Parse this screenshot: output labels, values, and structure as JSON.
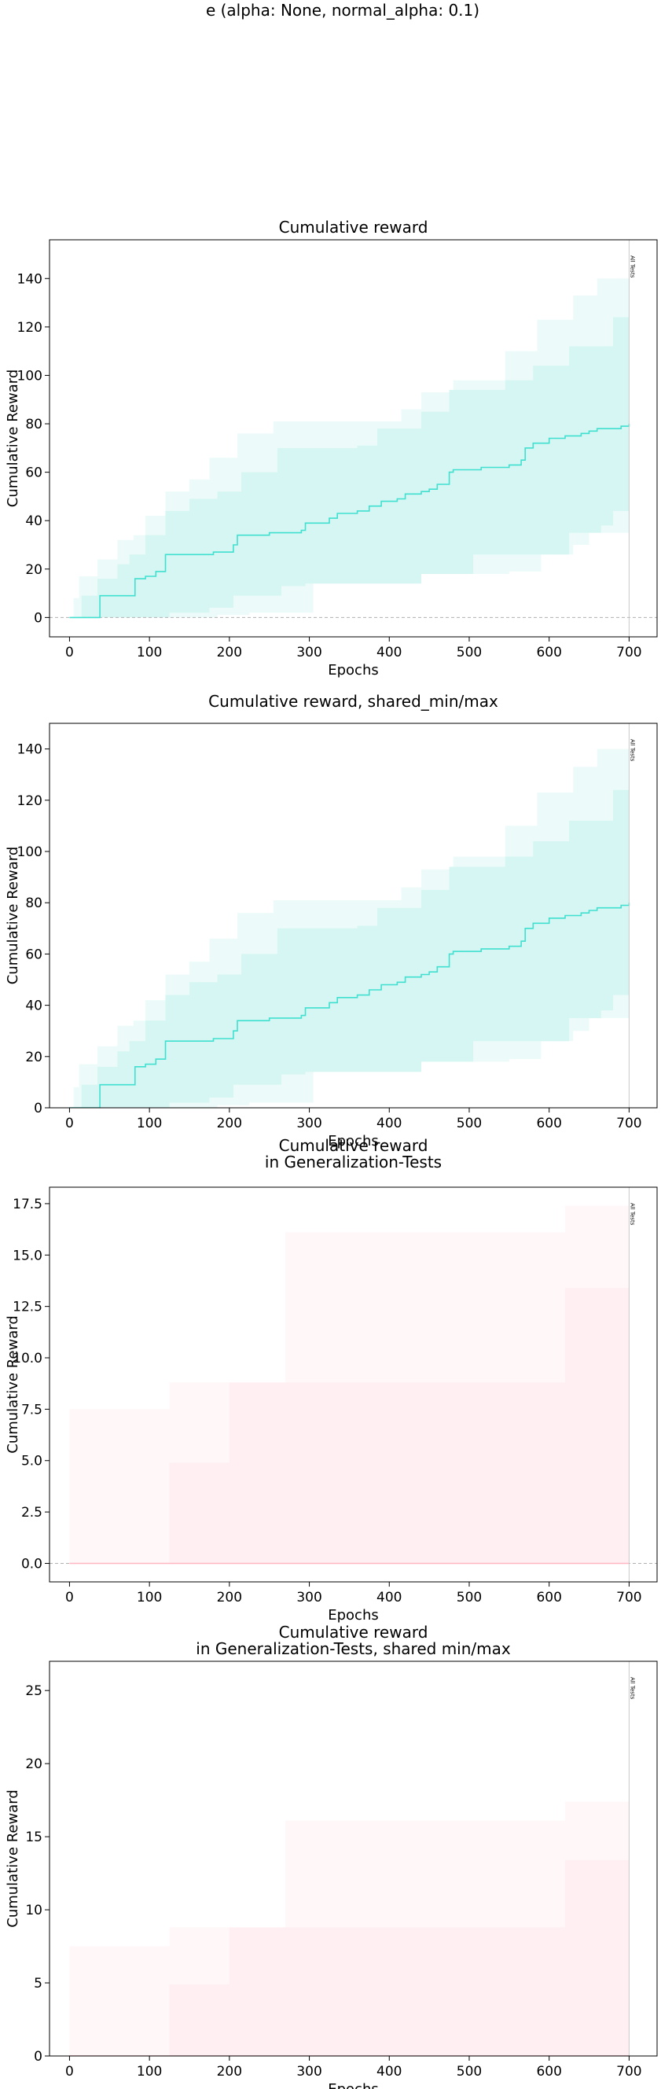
{
  "figure": {
    "suptitle": "e (alpha: None, normal_alpha: 0.1)",
    "vline_label": "All Tests"
  },
  "colors": {
    "train_outer": "#ecfbf9",
    "train_inner": "#d5f6f2",
    "train_line": "#40e0d0",
    "test_outer": "#fff7f8",
    "test_inner": "#ffeff2",
    "test_line": "#ffb6c1",
    "vline": "#c8c8c8",
    "zero_line": "#b0b0b0"
  },
  "chart_data": [
    {
      "type": "line",
      "title": "Cumulative reward",
      "xlabel": "Epochs",
      "ylabel": "Cumulative Reward",
      "xlim": [
        -25,
        735
      ],
      "ylim": [
        -8,
        156
      ],
      "xticks": [
        0,
        100,
        200,
        300,
        400,
        500,
        600,
        700
      ],
      "yticks": [
        0,
        20,
        40,
        60,
        80,
        100,
        120,
        140
      ],
      "zero_line": true,
      "grid": false,
      "palette": "train",
      "vline_x": 700,
      "bands": {
        "outer_upper": [
          [
            0,
            0
          ],
          [
            5,
            8
          ],
          [
            12,
            17
          ],
          [
            35,
            24
          ],
          [
            60,
            32
          ],
          [
            80,
            34
          ],
          [
            95,
            42
          ],
          [
            120,
            52
          ],
          [
            150,
            57
          ],
          [
            175,
            66
          ],
          [
            210,
            76
          ],
          [
            255,
            81
          ],
          [
            415,
            86
          ],
          [
            440,
            93
          ],
          [
            480,
            98
          ],
          [
            545,
            110
          ],
          [
            585,
            123
          ],
          [
            630,
            133
          ],
          [
            660,
            140
          ],
          [
            700,
            147
          ]
        ],
        "inner_upper": [
          [
            0,
            0
          ],
          [
            15,
            9
          ],
          [
            35,
            16
          ],
          [
            60,
            22
          ],
          [
            75,
            26
          ],
          [
            95,
            34
          ],
          [
            120,
            44
          ],
          [
            150,
            49
          ],
          [
            185,
            52
          ],
          [
            215,
            60
          ],
          [
            260,
            70
          ],
          [
            360,
            71
          ],
          [
            385,
            78
          ],
          [
            440,
            85
          ],
          [
            475,
            94
          ],
          [
            545,
            98
          ],
          [
            580,
            104
          ],
          [
            625,
            112
          ],
          [
            680,
            124
          ],
          [
            700,
            124
          ]
        ],
        "inner_lower": [
          [
            0,
            0
          ],
          [
            70,
            0
          ],
          [
            125,
            2
          ],
          [
            175,
            4
          ],
          [
            205,
            9
          ],
          [
            265,
            13
          ],
          [
            295,
            14
          ],
          [
            440,
            18
          ],
          [
            505,
            26
          ],
          [
            625,
            35
          ],
          [
            665,
            38
          ],
          [
            680,
            44
          ],
          [
            700,
            45
          ]
        ],
        "outer_lower": [
          [
            0,
            0
          ],
          [
            135,
            0
          ],
          [
            185,
            1
          ],
          [
            225,
            2
          ],
          [
            305,
            18
          ],
          [
            550,
            19
          ],
          [
            590,
            26
          ],
          [
            630,
            30
          ],
          [
            650,
            35
          ],
          [
            700,
            35
          ]
        ]
      },
      "series": [
        {
          "values": [
            [
              0,
              0
            ],
            [
              35,
              0
            ],
            [
              38,
              9
            ],
            [
              80,
              9
            ],
            [
              82,
              16
            ],
            [
              95,
              17
            ],
            [
              108,
              19
            ],
            [
              120,
              26
            ],
            [
              180,
              27
            ],
            [
              205,
              30
            ],
            [
              210,
              34
            ],
            [
              250,
              35
            ],
            [
              290,
              36
            ],
            [
              295,
              39
            ],
            [
              325,
              41
            ],
            [
              335,
              43
            ],
            [
              360,
              44
            ],
            [
              375,
              46
            ],
            [
              385,
              46
            ],
            [
              390,
              48
            ],
            [
              410,
              49
            ],
            [
              420,
              51
            ],
            [
              440,
              52
            ],
            [
              450,
              53
            ],
            [
              460,
              55
            ],
            [
              475,
              60
            ],
            [
              480,
              61
            ],
            [
              490,
              61
            ],
            [
              515,
              62
            ],
            [
              550,
              63
            ],
            [
              565,
              65
            ],
            [
              570,
              70
            ],
            [
              580,
              72
            ],
            [
              600,
              74
            ],
            [
              620,
              75
            ],
            [
              640,
              76
            ],
            [
              650,
              77
            ],
            [
              660,
              78
            ],
            [
              690,
              79
            ],
            [
              700,
              80
            ]
          ]
        }
      ]
    },
    {
      "type": "line",
      "title": "Cumulative reward, shared_min/max",
      "xlabel": "Epochs",
      "ylabel": "Cumulative Reward",
      "xlim": [
        -25,
        735
      ],
      "ylim": [
        0,
        150
      ],
      "xticks": [
        0,
        100,
        200,
        300,
        400,
        500,
        600,
        700
      ],
      "yticks": [
        0,
        20,
        40,
        60,
        80,
        100,
        120,
        140
      ],
      "zero_line": false,
      "grid": false,
      "palette": "train",
      "vline_x": 700,
      "bands": {
        "outer_upper": [
          [
            0,
            0
          ],
          [
            5,
            8
          ],
          [
            12,
            17
          ],
          [
            35,
            24
          ],
          [
            60,
            32
          ],
          [
            80,
            34
          ],
          [
            95,
            42
          ],
          [
            120,
            52
          ],
          [
            150,
            57
          ],
          [
            175,
            66
          ],
          [
            210,
            76
          ],
          [
            255,
            81
          ],
          [
            415,
            86
          ],
          [
            440,
            93
          ],
          [
            480,
            98
          ],
          [
            545,
            110
          ],
          [
            585,
            123
          ],
          [
            630,
            133
          ],
          [
            660,
            140
          ],
          [
            700,
            147
          ]
        ],
        "inner_upper": [
          [
            0,
            0
          ],
          [
            15,
            9
          ],
          [
            35,
            16
          ],
          [
            60,
            22
          ],
          [
            75,
            26
          ],
          [
            95,
            34
          ],
          [
            120,
            44
          ],
          [
            150,
            49
          ],
          [
            185,
            52
          ],
          [
            215,
            60
          ],
          [
            260,
            70
          ],
          [
            360,
            71
          ],
          [
            385,
            78
          ],
          [
            440,
            85
          ],
          [
            475,
            94
          ],
          [
            545,
            98
          ],
          [
            580,
            104
          ],
          [
            625,
            112
          ],
          [
            680,
            124
          ],
          [
            700,
            124
          ]
        ],
        "inner_lower": [
          [
            0,
            0
          ],
          [
            70,
            0
          ],
          [
            125,
            2
          ],
          [
            175,
            4
          ],
          [
            205,
            9
          ],
          [
            265,
            13
          ],
          [
            295,
            14
          ],
          [
            440,
            18
          ],
          [
            505,
            26
          ],
          [
            625,
            35
          ],
          [
            665,
            38
          ],
          [
            680,
            44
          ],
          [
            700,
            45
          ]
        ],
        "outer_lower": [
          [
            0,
            0
          ],
          [
            135,
            0
          ],
          [
            185,
            1
          ],
          [
            225,
            2
          ],
          [
            305,
            18
          ],
          [
            550,
            19
          ],
          [
            590,
            26
          ],
          [
            630,
            30
          ],
          [
            650,
            35
          ],
          [
            700,
            35
          ]
        ]
      },
      "series": [
        {
          "values": [
            [
              0,
              0
            ],
            [
              35,
              0
            ],
            [
              38,
              9
            ],
            [
              80,
              9
            ],
            [
              82,
              16
            ],
            [
              95,
              17
            ],
            [
              108,
              19
            ],
            [
              120,
              26
            ],
            [
              180,
              27
            ],
            [
              205,
              30
            ],
            [
              210,
              34
            ],
            [
              250,
              35
            ],
            [
              290,
              36
            ],
            [
              295,
              39
            ],
            [
              325,
              41
            ],
            [
              335,
              43
            ],
            [
              360,
              44
            ],
            [
              375,
              46
            ],
            [
              385,
              46
            ],
            [
              390,
              48
            ],
            [
              410,
              49
            ],
            [
              420,
              51
            ],
            [
              440,
              52
            ],
            [
              450,
              53
            ],
            [
              460,
              55
            ],
            [
              475,
              60
            ],
            [
              480,
              61
            ],
            [
              490,
              61
            ],
            [
              515,
              62
            ],
            [
              550,
              63
            ],
            [
              565,
              65
            ],
            [
              570,
              70
            ],
            [
              580,
              72
            ],
            [
              600,
              74
            ],
            [
              620,
              75
            ],
            [
              640,
              76
            ],
            [
              650,
              77
            ],
            [
              660,
              78
            ],
            [
              690,
              79
            ],
            [
              700,
              80
            ]
          ]
        }
      ]
    },
    {
      "type": "line",
      "title": "Cumulative reward\nin Generalization-Tests",
      "xlabel": "Epochs",
      "ylabel": "Cumulative Reward",
      "xlim": [
        -25,
        735
      ],
      "ylim": [
        -0.9,
        18.3
      ],
      "xticks": [
        0,
        100,
        200,
        300,
        400,
        500,
        600,
        700
      ],
      "yticks": [
        0.0,
        2.5,
        5.0,
        7.5,
        10.0,
        12.5,
        15.0,
        17.5
      ],
      "ytick_format": "fixed1",
      "zero_line": true,
      "grid": false,
      "palette": "test",
      "vline_x": 700,
      "bands": {
        "outer_upper": [
          [
            0,
            7.5
          ],
          [
            100,
            7.5
          ],
          [
            125,
            8.8
          ],
          [
            255,
            8.8
          ],
          [
            270,
            16.1
          ],
          [
            590,
            16.1
          ],
          [
            620,
            17.4
          ],
          [
            700,
            17.4
          ]
        ],
        "inner_upper": [
          [
            0,
            0
          ],
          [
            100,
            0
          ],
          [
            125,
            4.9
          ],
          [
            160,
            4.9
          ],
          [
            200,
            8.8
          ],
          [
            590,
            8.8
          ],
          [
            620,
            13.4
          ],
          [
            660,
            13.4
          ],
          [
            700,
            17.4
          ]
        ],
        "inner_lower": [
          [
            0,
            0
          ],
          [
            700,
            0
          ]
        ],
        "outer_lower": [
          [
            0,
            0
          ],
          [
            700,
            0
          ]
        ]
      },
      "series": [
        {
          "values": [
            [
              0,
              0
            ],
            [
              700,
              0
            ]
          ]
        }
      ]
    },
    {
      "type": "line",
      "title": "Cumulative reward\nin Generalization-Tests, shared min/max",
      "xlabel": "Epochs",
      "ylabel": "Cumulative Reward",
      "xlim": [
        -25,
        735
      ],
      "ylim": [
        0,
        27
      ],
      "xticks": [
        0,
        100,
        200,
        300,
        400,
        500,
        600,
        700
      ],
      "yticks": [
        0,
        5,
        10,
        15,
        20,
        25
      ],
      "zero_line": false,
      "grid": false,
      "palette": "test",
      "vline_x": 700,
      "bands": {
        "outer_upper": [
          [
            0,
            7.5
          ],
          [
            100,
            7.5
          ],
          [
            125,
            8.8
          ],
          [
            255,
            8.8
          ],
          [
            270,
            16.1
          ],
          [
            590,
            16.1
          ],
          [
            620,
            17.4
          ],
          [
            700,
            17.4
          ]
        ],
        "inner_upper": [
          [
            0,
            0
          ],
          [
            100,
            0
          ],
          [
            125,
            4.9
          ],
          [
            160,
            4.9
          ],
          [
            200,
            8.8
          ],
          [
            590,
            8.8
          ],
          [
            620,
            13.4
          ],
          [
            660,
            13.4
          ],
          [
            700,
            17.4
          ]
        ],
        "inner_lower": [
          [
            0,
            0
          ],
          [
            700,
            0
          ]
        ],
        "outer_lower": [
          [
            0,
            0
          ],
          [
            700,
            0
          ]
        ]
      },
      "series": [
        {
          "values": [
            [
              0,
              0
            ],
            [
              700,
              0
            ]
          ]
        }
      ]
    }
  ]
}
